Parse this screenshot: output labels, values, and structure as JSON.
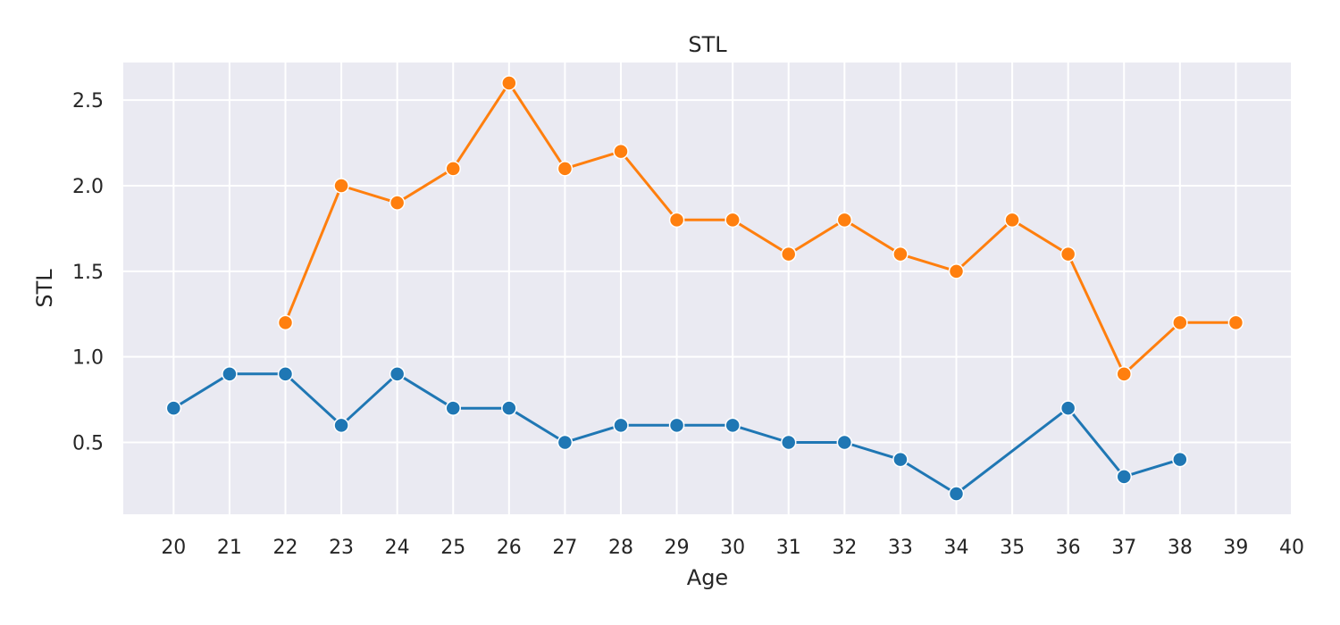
{
  "chart_data": {
    "type": "line",
    "title": "STL",
    "xlabel": "Age",
    "ylabel": "STL",
    "xlim": [
      19.1,
      40
    ],
    "ylim": [
      0.08,
      2.72
    ],
    "x_ticks": [
      20,
      21,
      22,
      23,
      24,
      25,
      26,
      27,
      28,
      29,
      30,
      31,
      32,
      33,
      34,
      35,
      36,
      37,
      38,
      39,
      40
    ],
    "y_ticks": [
      0.5,
      1.0,
      1.5,
      2.0,
      2.5
    ],
    "y_tick_labels": [
      "0.5",
      "1.0",
      "1.5",
      "2.0",
      "2.5"
    ],
    "grid": true,
    "legend": "none",
    "colors": {
      "background": "#EAEAF2",
      "grid": "#FFFFFF",
      "series_1": "#1F77B4",
      "series_2": "#FF7F0E"
    },
    "series": [
      {
        "color": "#1F77B4",
        "points": [
          [
            20,
            0.7
          ],
          [
            21,
            0.9
          ],
          [
            22,
            0.9
          ],
          [
            23,
            0.6
          ],
          [
            24,
            0.9
          ],
          [
            25,
            0.7
          ],
          [
            26,
            0.7
          ],
          [
            27,
            0.5
          ],
          [
            28,
            0.6
          ],
          [
            29,
            0.6
          ],
          [
            30,
            0.6
          ],
          [
            31,
            0.5
          ],
          [
            32,
            0.5
          ],
          [
            33,
            0.4
          ],
          [
            34,
            0.2
          ],
          [
            36,
            0.7
          ],
          [
            37,
            0.3
          ],
          [
            38,
            0.4
          ]
        ]
      },
      {
        "color": "#FF7F0E",
        "points": [
          [
            22,
            1.2
          ],
          [
            23,
            2.0
          ],
          [
            24,
            1.9
          ],
          [
            25,
            2.1
          ],
          [
            26,
            2.6
          ],
          [
            27,
            2.1
          ],
          [
            28,
            2.2
          ],
          [
            29,
            1.8
          ],
          [
            30,
            1.8
          ],
          [
            31,
            1.6
          ],
          [
            32,
            1.8
          ],
          [
            33,
            1.6
          ],
          [
            34,
            1.5
          ],
          [
            35,
            1.8
          ],
          [
            36,
            1.6
          ],
          [
            37,
            0.9
          ],
          [
            38,
            1.2
          ],
          [
            39,
            1.2
          ]
        ]
      }
    ]
  }
}
